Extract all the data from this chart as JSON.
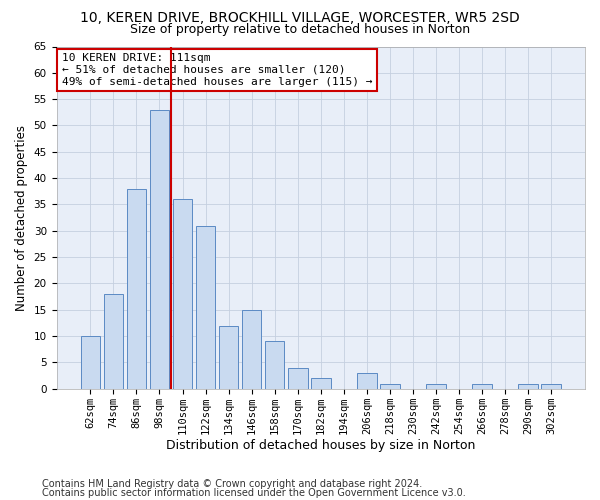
{
  "title1": "10, KEREN DRIVE, BROCKHILL VILLAGE, WORCESTER, WR5 2SD",
  "title2": "Size of property relative to detached houses in Norton",
  "xlabel": "Distribution of detached houses by size in Norton",
  "ylabel": "Number of detached properties",
  "bar_labels": [
    "62sqm",
    "74sqm",
    "86sqm",
    "98sqm",
    "110sqm",
    "122sqm",
    "134sqm",
    "146sqm",
    "158sqm",
    "170sqm",
    "182sqm",
    "194sqm",
    "206sqm",
    "218sqm",
    "230sqm",
    "242sqm",
    "254sqm",
    "266sqm",
    "278sqm",
    "290sqm",
    "302sqm"
  ],
  "bar_values": [
    10,
    18,
    38,
    53,
    36,
    31,
    12,
    15,
    9,
    4,
    2,
    0,
    3,
    1,
    0,
    1,
    0,
    1,
    0,
    1,
    1
  ],
  "bar_color": "#c9daf0",
  "bar_edge_color": "#5b8ac4",
  "red_line_x": 3.5,
  "annotation_text": "10 KEREN DRIVE: 111sqm\n← 51% of detached houses are smaller (120)\n49% of semi-detached houses are larger (115) →",
  "annotation_box_color": "#ffffff",
  "annotation_box_edge": "#cc0000",
  "ylim": [
    0,
    65
  ],
  "yticks": [
    0,
    5,
    10,
    15,
    20,
    25,
    30,
    35,
    40,
    45,
    50,
    55,
    60,
    65
  ],
  "footer1": "Contains HM Land Registry data © Crown copyright and database right 2024.",
  "footer2": "Contains public sector information licensed under the Open Government Licence v3.0.",
  "bg_color": "#ffffff",
  "plot_bg_color": "#e8eef8",
  "grid_color": "#c5cfe0",
  "title1_fontsize": 10,
  "title2_fontsize": 9,
  "xlabel_fontsize": 9,
  "ylabel_fontsize": 8.5,
  "tick_fontsize": 7.5,
  "annotation_fontsize": 8,
  "footer_fontsize": 7
}
